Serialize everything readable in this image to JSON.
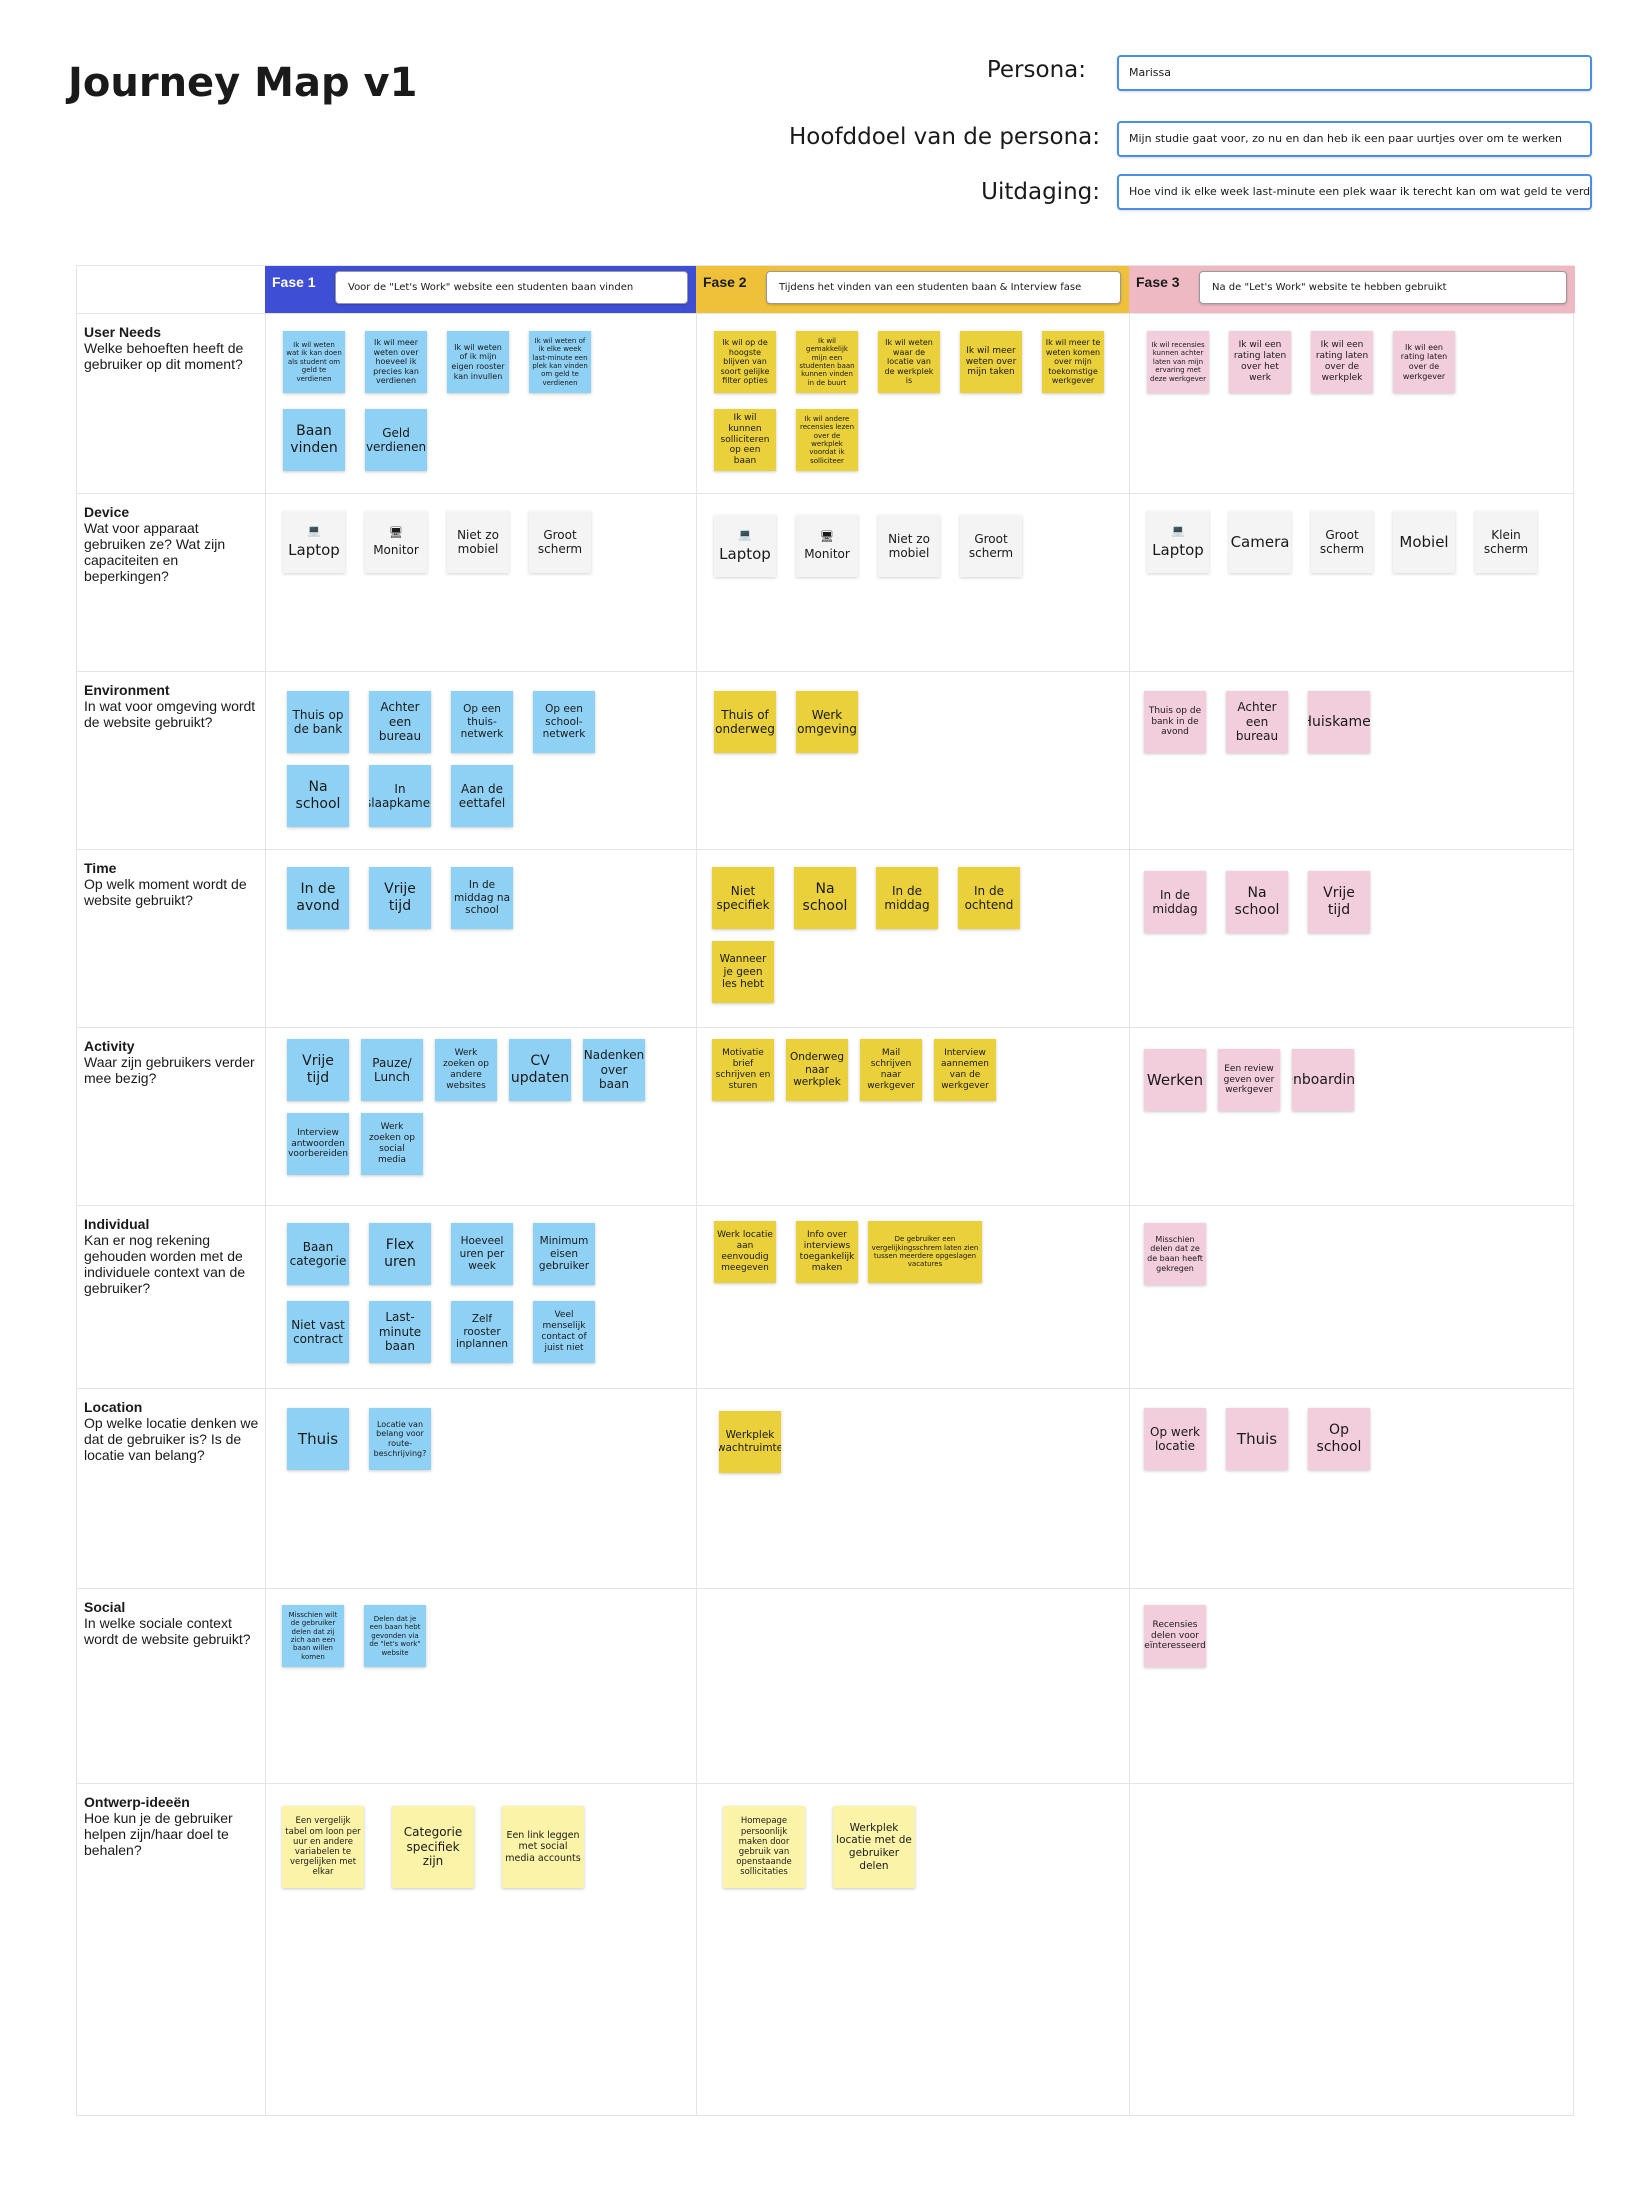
{
  "page": {
    "title": "Journey Map v1",
    "persona_label": "Persona:",
    "persona_value": "Marissa",
    "goal_label": "Hoofddoel van de persona:",
    "goal_value": "Mijn studie gaat voor, zo nu en dan heb ik een paar uurtjes over om te werken",
    "challenge_label": "Uitdaging:",
    "challenge_value": "Hoe vind ik elke week last-minute een plek waar ik terecht kan om wat geld te verdienen?"
  },
  "colors": {
    "phase1": "#3e4fd6",
    "phase2": "#efc13b",
    "phase3": "#efb9c4",
    "blue_sticky": "#8fd1f5",
    "yellow_sticky": "#ead03a",
    "pink_sticky": "#f2cddc",
    "pale_yellow_sticky": "#fbf4a8"
  },
  "phases": [
    {
      "label": "Fase 1",
      "desc": "Voor de \"Let's Work\" website een studenten baan vinden"
    },
    {
      "label": "Fase 2",
      "desc": "Tijdens het vinden van een studenten baan & Interview fase"
    },
    {
      "label": "Fase 3",
      "desc": "Na de \"Let's Work\" website te hebben gebruikt"
    }
  ],
  "rows": [
    {
      "title": "User Needs",
      "question": "Welke behoeften heeft de gebruiker op dit moment?",
      "cells": [
        [
          "Ik wil weten wat ik kan doen als student om geld te verdienen",
          "Ik wil meer weten over hoeveel ik precies kan verdienen",
          "Ik wil weten of ik mijn eigen rooster kan invullen",
          "Ik wil weten of ik elke week last-minute een plek kan vinden om geld te verdienen",
          "Baan vinden",
          "Geld verdienen"
        ],
        [
          "Ik wil op de hoogste blijven van soort gelijke filter opties",
          "Ik wil gemakkelijk mijn een studenten baan kunnen vinden in de buurt",
          "Ik wil weten waar de locatie van de werkplek is",
          "Ik wil meer weten over mijn taken",
          "Ik wil meer te weten komen over mijn toekomstige werkgever",
          "Ik wil kunnen solliciteren op een baan",
          "Ik wil andere recensies lezen over de werkplek voordat ik solliciteer"
        ],
        [
          "Ik wil recensies kunnen achter laten van mijn ervaring met deze werkgever",
          "Ik wil een rating laten over het werk",
          "Ik wil een rating laten over de werkplek",
          "Ik wil een rating laten over de werkgever"
        ]
      ]
    },
    {
      "title": "Device",
      "question": "Wat voor apparaat gebruiken ze? Wat zijn capaciteiten en beperkingen?",
      "cells": [
        [
          "Laptop",
          "Monitor",
          "Niet zo mobiel",
          "Groot scherm"
        ],
        [
          "Laptop",
          "Monitor",
          "Niet zo mobiel",
          "Groot scherm"
        ],
        [
          "Laptop",
          "Camera",
          "Groot scherm",
          "Mobiel",
          "Klein scherm"
        ]
      ]
    },
    {
      "title": "Environment",
      "question": "In wat voor omgeving wordt de website gebruikt?",
      "cells": [
        [
          "Thuis op de bank",
          "Achter een bureau",
          "Op een thuis-netwerk",
          "Op een school-netwerk",
          "Na school",
          "In slaapkamer",
          "Aan de eettafel"
        ],
        [
          "Thuis of onderweg",
          "Werk omgeving"
        ],
        [
          "Thuis op de bank in de avond",
          "Achter een bureau",
          "Huiskamer"
        ]
      ]
    },
    {
      "title": "Time",
      "question": "Op welk moment wordt de website gebruikt?",
      "cells": [
        [
          "In de avond",
          "Vrije tijd",
          "In de middag na school"
        ],
        [
          "Niet specifiek",
          "Na school",
          "In de middag",
          "In de ochtend",
          "Wanneer je geen les hebt"
        ],
        [
          "In de middag",
          "Na school",
          "Vrije tijd"
        ]
      ]
    },
    {
      "title": "Activity",
      "question": "Waar zijn gebruikers verder mee bezig?",
      "cells": [
        [
          "Vrije tijd",
          "Pauze/ Lunch",
          "Werk zoeken op andere websites",
          "CV updaten",
          "Nadenken over baan",
          "Interview antwoorden voorbereiden",
          "Werk zoeken op social media"
        ],
        [
          "Motivatie brief schrijven en sturen",
          "Onderweg naar werkplek",
          "Mail schrijven naar werkgever",
          "Interview aannemen van de werkgever"
        ],
        [
          "Werken",
          "Een review geven over werkgever",
          "Onboarding"
        ]
      ]
    },
    {
      "title": "Individual",
      "question": "Kan er nog rekening gehouden worden met de individuele context van de gebruiker?",
      "cells": [
        [
          "Baan categorie",
          "Flex uren",
          "Hoeveel uren per week",
          "Minimum eisen gebruiker",
          "Niet vast contract",
          "Last-minute baan",
          "Zelf rooster inplannen",
          "Veel menselijk contact of juist niet"
        ],
        [
          "Werk locatie aan eenvoudig meegeven",
          "Info over interviews toegankelijk maken",
          "De gebruiker een vergelijkingsschrem laten zien tussen meerdere opgeslagen vacatures"
        ],
        [
          "Misschien delen dat ze de baan heeft gekregen"
        ]
      ]
    },
    {
      "title": "Location",
      "question": "Op welke locatie denken we dat de gebruiker is? Is de locatie van belang?",
      "cells": [
        [
          "Thuis",
          "Locatie van belang voor route-beschrijving?"
        ],
        [
          "Werkplek wachtruimte"
        ],
        [
          "Op werk locatie",
          "Thuis",
          "Op school"
        ]
      ]
    },
    {
      "title": "Social",
      "question": "In welke sociale context wordt de website gebruikt?",
      "cells": [
        [
          "Misschien wilt de gebruiker delen dat zij zich aan een baan willen komen",
          "Delen dat je een baan hebt gevonden via de \"let's work\" website"
        ],
        [],
        [
          "Recensies delen voor geïnteresseerde"
        ]
      ]
    },
    {
      "title": "Ontwerp-ideeën",
      "question": "Hoe kun je de gebruiker helpen zijn/haar doel te behalen?",
      "cells": [
        [
          "Een vergelijk tabel om loon per uur en andere variabelen te vergelijken met elkar",
          "Categorie specifiek zijn",
          "Een link leggen met social media accounts"
        ],
        [
          "Homepage persoonlijk maken door gebruik van openstaande sollicitaties",
          "Werkplek locatie met de gebruiker delen"
        ],
        []
      ]
    }
  ]
}
